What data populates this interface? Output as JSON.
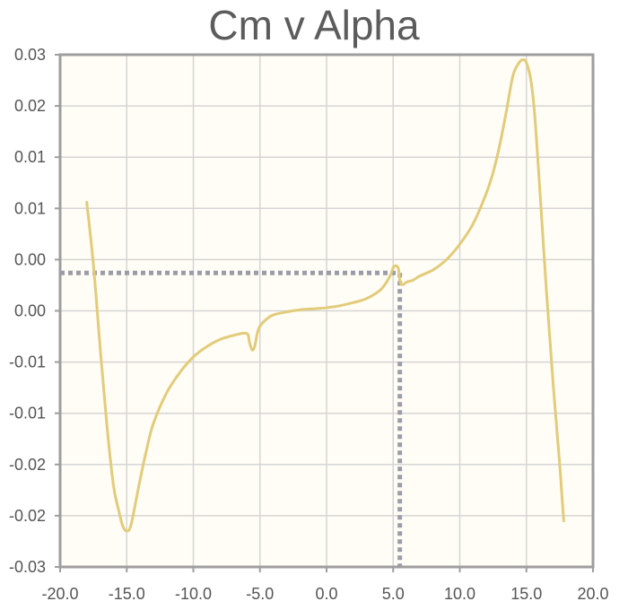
{
  "chart_data": {
    "type": "line",
    "title": "Cm v Alpha",
    "xlabel": "",
    "ylabel": "",
    "xlim": [
      -20,
      20
    ],
    "ylim": [
      -0.025,
      0.025
    ],
    "x_ticks": [
      -20,
      -15,
      -10,
      -5,
      0,
      5,
      10,
      15,
      20
    ],
    "x_tick_labels": [
      "-20.0",
      "-15.0",
      "-10.0",
      "-5.0",
      "0.0",
      "5.0",
      "10.0",
      "15.0",
      "20.0"
    ],
    "y_ticks": [
      0.025,
      0.02,
      0.015,
      0.01,
      0.005,
      0.0,
      -0.005,
      -0.01,
      -0.015,
      -0.02,
      -0.025
    ],
    "y_tick_labels": [
      "0.03",
      "0.02",
      "0.01",
      "0.01",
      "0.00",
      "0.00",
      "-0.01",
      "-0.01",
      "-0.02",
      "-0.02",
      "-0.03"
    ],
    "grid": true,
    "colors": {
      "series": "#e2cb7a",
      "marker": "#9a9ca8",
      "plot_bg": "#fffdf5",
      "grid": "#d5d5d5",
      "frame": "#9e9e9e",
      "title": "#5c5c5c"
    },
    "series": [
      {
        "x": [
          -18.0,
          -17.5,
          -17.0,
          -16.5,
          -16.0,
          -15.6,
          -15.3,
          -15.0,
          -14.7,
          -14.3,
          -14.0,
          -13.5,
          -13.0,
          -12.0,
          -11.0,
          -10.0,
          -9.0,
          -8.0,
          -7.0,
          -6.0,
          -5.8,
          -5.6,
          -5.4,
          -5.2,
          -5.0,
          -4.5,
          -4.0,
          -3.0,
          -2.0,
          -1.0,
          0.0,
          1.0,
          2.0,
          3.0,
          4.0,
          4.5,
          4.8,
          5.0,
          5.2,
          5.4,
          5.5,
          5.6,
          5.8,
          6.0,
          6.5,
          7.0,
          8.0,
          9.0,
          10.0,
          11.0,
          12.0,
          12.5,
          13.0,
          13.5,
          14.0,
          14.5,
          14.8,
          15.0,
          15.3,
          15.6,
          16.0,
          16.5,
          17.0,
          17.5,
          17.8
        ],
        "y": [
          0.0106,
          0.0045,
          -0.0035,
          -0.011,
          -0.017,
          -0.0195,
          -0.021,
          -0.0215,
          -0.021,
          -0.0185,
          -0.0165,
          -0.0135,
          -0.011,
          -0.008,
          -0.006,
          -0.0045,
          -0.0035,
          -0.0028,
          -0.0024,
          -0.0022,
          -0.003,
          -0.0038,
          -0.0035,
          -0.0022,
          -0.0015,
          -0.0008,
          -0.0004,
          -0.0001,
          0.0001,
          0.0002,
          0.0003,
          0.0005,
          0.0008,
          0.0012,
          0.002,
          0.0028,
          0.0035,
          0.0042,
          0.0044,
          0.0041,
          0.003,
          0.0026,
          0.0026,
          0.0028,
          0.003,
          0.0034,
          0.004,
          0.005,
          0.0065,
          0.0085,
          0.0115,
          0.0135,
          0.0162,
          0.0195,
          0.023,
          0.0243,
          0.0245,
          0.0242,
          0.0228,
          0.0195,
          0.012,
          0.002,
          -0.007,
          -0.015,
          -0.0205
        ]
      }
    ],
    "reference_lines": {
      "x": 5.5,
      "y": 0.0037
    }
  }
}
